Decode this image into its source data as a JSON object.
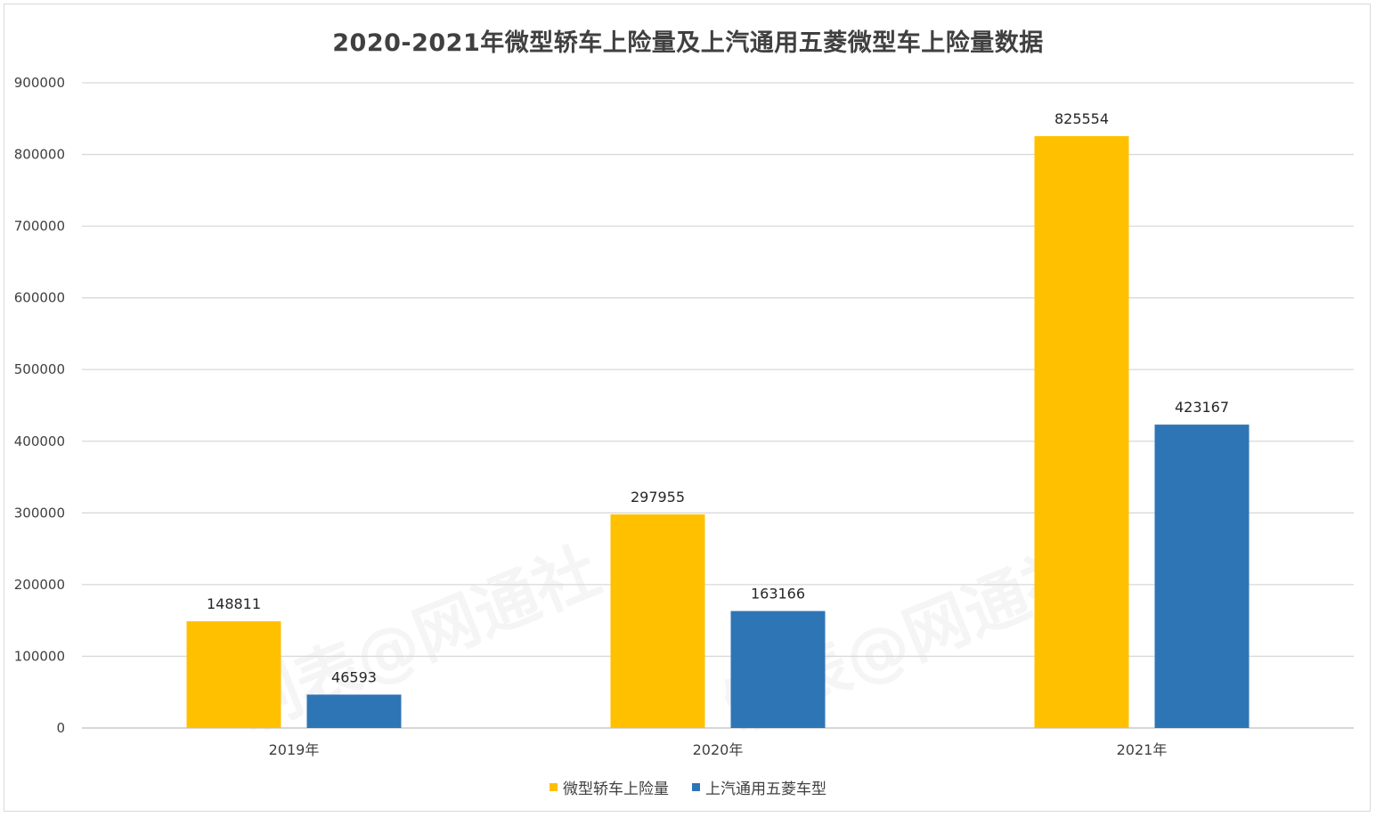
{
  "chart_data": {
    "type": "bar",
    "title": "2020-2021年微型轿车上险量及上汽通用五菱微型车上险量数据",
    "categories": [
      "2019年",
      "2020年",
      "2021年"
    ],
    "series": [
      {
        "name": "微型轿车上险量",
        "color": "#FFC000",
        "values": [
          148811,
          297955,
          825554
        ]
      },
      {
        "name": "上汽通用五菱车型",
        "color": "#2E75B6",
        "values": [
          46593,
          163166,
          423167
        ]
      }
    ],
    "ylim": [
      0,
      900000
    ],
    "yticks": [
      0,
      100000,
      200000,
      300000,
      400000,
      500000,
      600000,
      700000,
      800000,
      900000
    ],
    "grid": true,
    "legend": "bottom"
  },
  "watermark": "制表@网通社"
}
